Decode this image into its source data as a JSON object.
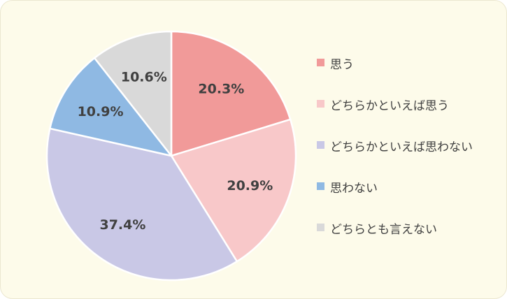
{
  "chart_data": {
    "type": "pie",
    "start": "12 o'clock",
    "direction": "clockwise",
    "legend_position": "right",
    "slices": [
      {
        "label": "思う",
        "value": 20.3,
        "value_label": "20.3%",
        "color": "#f19a99"
      },
      {
        "label": "どちらかといえば思う",
        "value": 20.9,
        "value_label": "20.9%",
        "color": "#f8c8c9"
      },
      {
        "label": "どちらかといえば思わない",
        "value": 37.4,
        "value_label": "37.4%",
        "color": "#c9c8e6"
      },
      {
        "label": "思わない",
        "value": 10.9,
        "value_label": "10.9%",
        "color": "#8fb9e3"
      },
      {
        "label": "どちらとも言えない",
        "value": 10.6,
        "value_label": "10.6%",
        "color": "#d9d9d9"
      }
    ]
  }
}
